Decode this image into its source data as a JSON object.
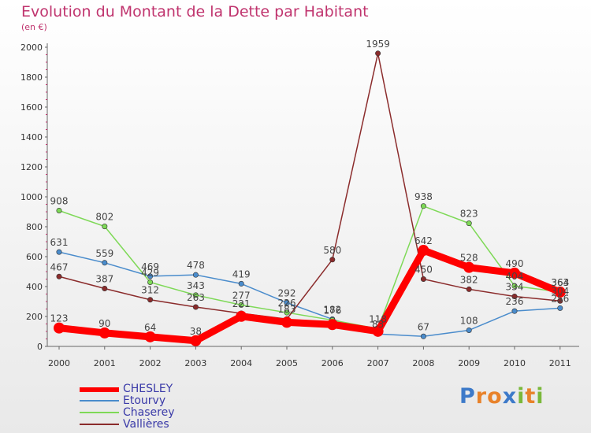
{
  "chart_data": {
    "type": "line",
    "title": "Evolution du Montant de la Dette par Habitant",
    "subtitle": "(en €)",
    "categories": [
      "2000",
      "2001",
      "2002",
      "2003",
      "2004",
      "2005",
      "2006",
      "2007",
      "2008",
      "2009",
      "2010",
      "2011"
    ],
    "yticks": [
      "0",
      "200",
      "400",
      "600",
      "800",
      "1000",
      "1200",
      "1400",
      "1600",
      "1800",
      "2000"
    ],
    "ylim": [
      0,
      2000
    ],
    "grid": false,
    "legend_position": "bottom-left",
    "series": [
      {
        "name": "CHESLEY",
        "color": "#ff0000",
        "values": [
          123,
          90,
          64,
          38,
          201,
          161,
          146,
          101,
          642,
          528,
          490,
          363
        ],
        "labels": [
          "123",
          "90",
          "64",
          "38",
          "",
          "",
          "",
          "",
          "642",
          "528",
          "490",
          "363"
        ]
      },
      {
        "name": "Etourvy",
        "color": "#4a8ccc",
        "values": [
          631,
          559,
          469,
          478,
          419,
          292,
          182,
          83,
          67,
          108,
          236,
          256
        ],
        "labels": [
          "631",
          "559",
          "469",
          "478",
          "419",
          "292",
          "182",
          "83",
          "67",
          "108",
          "236",
          "256"
        ]
      },
      {
        "name": "Chaserey",
        "color": "#7ed957",
        "values": [
          908,
          802,
          429,
          343,
          277,
          226,
          176,
          118,
          938,
          823,
          404,
          364
        ],
        "labels": [
          "908",
          "802",
          "429",
          "343",
          "277",
          "226",
          "176",
          "118",
          "938",
          "823",
          "404",
          "364"
        ]
      },
      {
        "name": "Vallières",
        "color": "#8b2c2c",
        "values": [
          467,
          387,
          312,
          263,
          221,
          183,
          580,
          1959,
          450,
          382,
          334,
          304
        ],
        "labels": [
          "467",
          "387",
          "312",
          "263",
          "221",
          "183",
          "580",
          "1959",
          "450",
          "382",
          "334",
          "304"
        ]
      }
    ]
  },
  "logo": {
    "text": "Proxiti",
    "letters": [
      {
        "ch": "P",
        "color": "#3d7ac9"
      },
      {
        "ch": "r",
        "color": "#e8822a"
      },
      {
        "ch": "o",
        "color": "#e8822a"
      },
      {
        "ch": "x",
        "color": "#3d7ac9"
      },
      {
        "ch": "i",
        "color": "#7ab83a"
      },
      {
        "ch": "t",
        "color": "#e8822a"
      },
      {
        "ch": "i",
        "color": "#7ab83a"
      }
    ]
  }
}
